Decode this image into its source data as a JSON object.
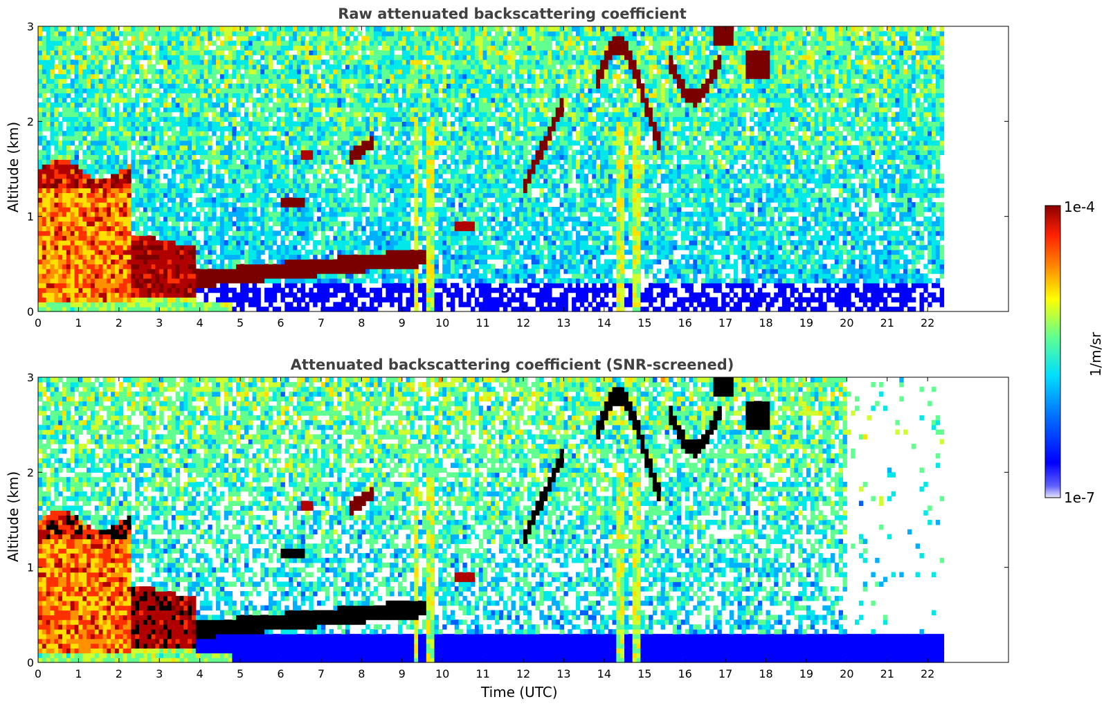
{
  "chart_data": [
    {
      "type": "heatmap",
      "title": "Raw attenuated backscattering coefficient",
      "xlabel": "",
      "ylabel": "Altitude (km)",
      "xlim": [
        0,
        24
      ],
      "ylim": [
        0,
        3
      ],
      "data_extent_x": [
        0,
        22.4
      ],
      "x_ticks": [
        "0",
        "1",
        "2",
        "3",
        "4",
        "5",
        "6",
        "7",
        "8",
        "9",
        "10",
        "11",
        "12",
        "13",
        "14",
        "15",
        "16",
        "17",
        "18",
        "19",
        "20",
        "21",
        "22"
      ],
      "y_ticks": [
        "0",
        "1",
        "2",
        "3"
      ],
      "features": [
        {
          "layer": "boundary layer / fog (high backscatter)",
          "x_range": [
            0,
            2.3
          ],
          "alt_km": [
            0,
            1.6
          ],
          "level": "high"
        },
        {
          "layer": "dense low layer",
          "x_range": [
            2.3,
            4.0
          ],
          "alt_km": [
            0.2,
            0.9
          ],
          "level": "very high"
        },
        {
          "layer": "rising cloud base",
          "x_range": [
            3.9,
            9.5
          ],
          "alt_km_start": 0.35,
          "alt_km_end": 0.65,
          "level": "very high"
        },
        {
          "layer": "mid-level cloud patches",
          "x_range": [
            5.5,
            10.8
          ],
          "alt_km": [
            0.8,
            1.8
          ],
          "level": "very high"
        },
        {
          "layer": "upper cloud layer",
          "x_range": [
            12.0,
            18.2
          ],
          "alt_km": [
            1.3,
            3.0
          ],
          "level": "very high"
        },
        {
          "layer": "near-surface noise floor",
          "x_range": [
            4.7,
            22.4
          ],
          "alt_km": [
            0,
            0.3
          ],
          "level": "low"
        }
      ]
    },
    {
      "type": "heatmap",
      "title": "Attenuated backscattering coefficient (SNR-screened)",
      "xlabel": "Time (UTC)",
      "ylabel": "Altitude (km)",
      "xlim": [
        0,
        24
      ],
      "ylim": [
        0,
        3
      ],
      "data_extent_x": [
        0,
        22.4
      ],
      "x_ticks": [
        "0",
        "1",
        "2",
        "3",
        "4",
        "5",
        "6",
        "7",
        "8",
        "9",
        "10",
        "11",
        "12",
        "13",
        "14",
        "15",
        "16",
        "17",
        "18",
        "19",
        "20",
        "21",
        "22"
      ],
      "y_ticks": [
        "0",
        "1",
        "2",
        "3"
      ],
      "screened": true
    }
  ],
  "colorbar": {
    "label": "1/m/sr",
    "min_label": "1e-7",
    "max_label": "1e-4",
    "scale": "log",
    "colormap": [
      "#e8e8f8",
      "#0000ff",
      "#0080ff",
      "#00e0ff",
      "#60ff90",
      "#ffff00",
      "#ff8000",
      "#ff2000",
      "#8b0000"
    ]
  }
}
